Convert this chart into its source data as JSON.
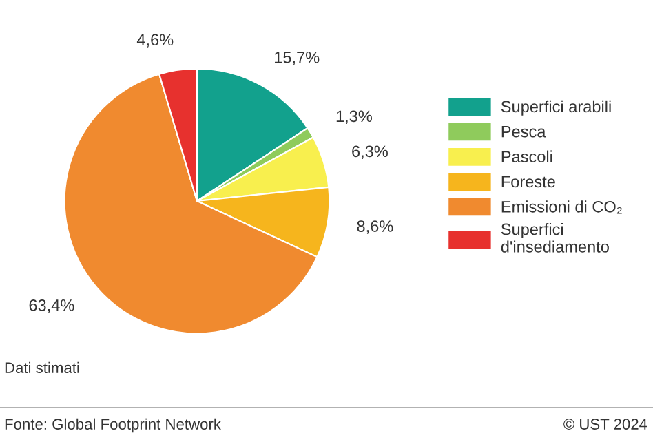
{
  "chart_data": {
    "type": "pie",
    "categories": [
      "Superfici arabili",
      "Pesca",
      "Pascoli",
      "Foreste",
      "Emissioni di CO₂",
      "Superfici\nd'insediamento"
    ],
    "values": [
      15.7,
      1.3,
      6.3,
      8.6,
      63.4,
      4.6
    ],
    "value_labels": [
      "15,7%",
      "1,3%",
      "6,3%",
      "8,6%",
      "63,4%",
      "4,6%"
    ],
    "colors": [
      "#12a18d",
      "#8fcb5c",
      "#f8ef4e",
      "#f6b51d",
      "#f08a2f",
      "#e7312e"
    ],
    "legend": "right",
    "annotations": [
      "Dati stimati",
      "Fonte: Global Footprint Network",
      "© UST 2024"
    ]
  }
}
